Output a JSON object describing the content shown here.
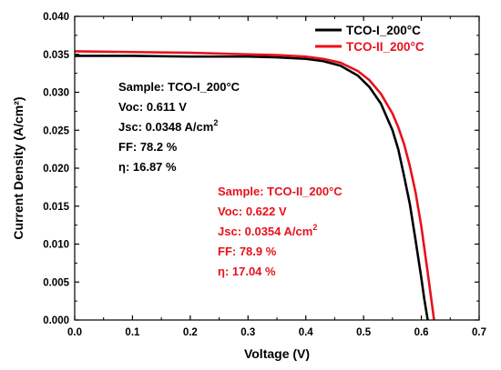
{
  "chart_data": {
    "type": "line",
    "xlabel": "Voltage (V)",
    "ylabel": "Current Density (A/cm²)",
    "xlim": [
      0.0,
      0.7
    ],
    "ylim": [
      0.0,
      0.04
    ],
    "x_ticks": [
      "0.0",
      "0.1",
      "0.2",
      "0.3",
      "0.4",
      "0.5",
      "0.6",
      "0.7"
    ],
    "y_ticks": [
      "0.000",
      "0.005",
      "0.010",
      "0.015",
      "0.020",
      "0.025",
      "0.030",
      "0.035",
      "0.040"
    ],
    "grid": false,
    "legend_position": "top-right",
    "colors": {
      "series1": "#000000",
      "series2": "#e8111b"
    },
    "series": [
      {
        "name": "TCO-I_200°C",
        "color": "#000000",
        "x": [
          0.0,
          0.1,
          0.2,
          0.3,
          0.35,
          0.4,
          0.43,
          0.46,
          0.49,
          0.51,
          0.53,
          0.55,
          0.56,
          0.57,
          0.58,
          0.59,
          0.6,
          0.605,
          0.611
        ],
        "y": [
          0.0348,
          0.0348,
          0.0347,
          0.0347,
          0.0346,
          0.0344,
          0.0341,
          0.0335,
          0.0322,
          0.0307,
          0.0285,
          0.025,
          0.0225,
          0.019,
          0.0153,
          0.0105,
          0.0055,
          0.0028,
          0.0
        ]
      },
      {
        "name": "TCO-II_200°C",
        "color": "#e8111b",
        "x": [
          0.0,
          0.1,
          0.2,
          0.3,
          0.35,
          0.4,
          0.43,
          0.46,
          0.49,
          0.51,
          0.53,
          0.55,
          0.56,
          0.57,
          0.58,
          0.59,
          0.6,
          0.61,
          0.616,
          0.622
        ],
        "y": [
          0.0354,
          0.0353,
          0.0352,
          0.035,
          0.0349,
          0.0347,
          0.0344,
          0.0339,
          0.0328,
          0.0316,
          0.0298,
          0.0272,
          0.0254,
          0.0232,
          0.0203,
          0.0168,
          0.0123,
          0.0068,
          0.0034,
          0.0
        ]
      }
    ],
    "annotations": [
      {
        "color": "#000000",
        "lines": [
          {
            "text": "Sample: TCO-I_200°C"
          },
          {
            "text": "Voc: 0.611 V"
          },
          {
            "text": "Jsc: 0.0348 A/cm",
            "sup": "2"
          },
          {
            "text": "FF: 78.2 %"
          },
          {
            "text": "η: 16.87 %"
          }
        ]
      },
      {
        "color": "#e8111b",
        "lines": [
          {
            "text": "Sample: TCO-II_200°C"
          },
          {
            "text": "Voc: 0.622 V"
          },
          {
            "text": "Jsc: 0.0354 A/cm",
            "sup": "2"
          },
          {
            "text": "FF: 78.9 %"
          },
          {
            "text": "η: 17.04 %"
          }
        ]
      }
    ]
  }
}
